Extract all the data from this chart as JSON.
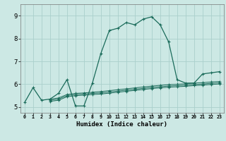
{
  "bg_color": "#cce8e4",
  "grid_color": "#aad0cc",
  "line_color": "#1a6b5a",
  "xlabel": "Humidex (Indice chaleur)",
  "xlabel_fontsize": 6.5,
  "ylabel_ticks": [
    5,
    6,
    7,
    8,
    9
  ],
  "xlim": [
    -0.5,
    23.5
  ],
  "ylim": [
    4.75,
    9.5
  ],
  "xtick_labels": [
    "0",
    "1",
    "2",
    "3",
    "4",
    "5",
    "6",
    "7",
    "8",
    "9",
    "10",
    "11",
    "12",
    "13",
    "14",
    "15",
    "16",
    "17",
    "18",
    "19",
    "20",
    "21",
    "22",
    "23"
  ],
  "main_x": [
    0,
    1,
    2,
    3,
    4,
    5,
    6,
    7,
    8,
    9,
    10,
    11,
    12,
    13,
    14,
    15,
    16,
    17,
    18,
    19,
    20,
    21,
    22,
    23
  ],
  "main_y": [
    5.2,
    5.85,
    5.3,
    5.35,
    5.6,
    6.2,
    5.05,
    5.05,
    6.05,
    7.35,
    8.35,
    8.45,
    8.7,
    8.6,
    8.85,
    8.95,
    8.6,
    7.85,
    6.2,
    6.05,
    6.05,
    6.45,
    6.5,
    6.55
  ],
  "flat1_x": [
    3,
    4,
    5,
    6,
    7,
    8,
    9,
    10,
    11,
    12,
    13,
    14,
    15,
    16,
    17,
    18,
    19,
    20,
    21,
    22,
    23
  ],
  "flat1_y": [
    5.35,
    5.4,
    5.55,
    5.6,
    5.62,
    5.65,
    5.68,
    5.72,
    5.76,
    5.8,
    5.84,
    5.88,
    5.92,
    5.95,
    5.98,
    6.0,
    6.02,
    6.05,
    6.07,
    6.1,
    6.12
  ],
  "flat2_x": [
    3,
    4,
    5,
    6,
    7,
    8,
    9,
    10,
    11,
    12,
    13,
    14,
    15,
    16,
    17,
    18,
    19,
    20,
    21,
    22,
    23
  ],
  "flat2_y": [
    5.3,
    5.35,
    5.5,
    5.55,
    5.57,
    5.6,
    5.62,
    5.66,
    5.7,
    5.74,
    5.78,
    5.82,
    5.86,
    5.89,
    5.92,
    5.94,
    5.96,
    5.99,
    6.01,
    6.04,
    6.06
  ],
  "flat3_x": [
    3,
    4,
    5,
    6,
    7,
    8,
    9,
    10,
    11,
    12,
    13,
    14,
    15,
    16,
    17,
    18,
    19,
    20,
    21,
    22,
    23
  ],
  "flat3_y": [
    5.25,
    5.3,
    5.45,
    5.5,
    5.52,
    5.55,
    5.57,
    5.61,
    5.65,
    5.69,
    5.73,
    5.77,
    5.81,
    5.84,
    5.87,
    5.89,
    5.91,
    5.94,
    5.96,
    5.99,
    6.01
  ]
}
